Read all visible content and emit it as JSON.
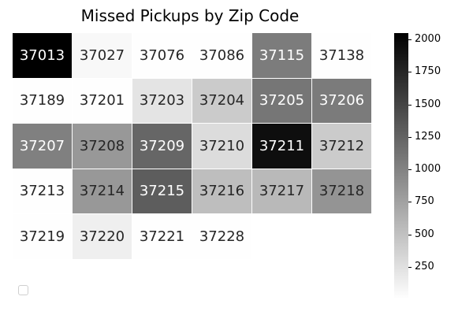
{
  "chart_data": {
    "type": "heatmap",
    "title": "Missed Pickups by Zip Code",
    "columns": 6,
    "cells": [
      {
        "label": "37013",
        "value": 2050
      },
      {
        "label": "37027",
        "value": 60
      },
      {
        "label": "37076",
        "value": 10
      },
      {
        "label": "37086",
        "value": 10
      },
      {
        "label": "37115",
        "value": 1050
      },
      {
        "label": "37138",
        "value": 10
      },
      {
        "label": "37189",
        "value": 10
      },
      {
        "label": "37201",
        "value": 5
      },
      {
        "label": "37203",
        "value": 220
      },
      {
        "label": "37204",
        "value": 420
      },
      {
        "label": "37205",
        "value": 1100
      },
      {
        "label": "37206",
        "value": 1060
      },
      {
        "label": "37207",
        "value": 1020
      },
      {
        "label": "37208",
        "value": 830
      },
      {
        "label": "37209",
        "value": 1230
      },
      {
        "label": "37210",
        "value": 280
      },
      {
        "label": "37211",
        "value": 1940
      },
      {
        "label": "37212",
        "value": 420
      },
      {
        "label": "37213",
        "value": 10
      },
      {
        "label": "37214",
        "value": 830
      },
      {
        "label": "37215",
        "value": 1300
      },
      {
        "label": "37216",
        "value": 520
      },
      {
        "label": "37217",
        "value": 560
      },
      {
        "label": "37218",
        "value": 860
      },
      {
        "label": "37219",
        "value": 10
      },
      {
        "label": "37220",
        "value": 130
      },
      {
        "label": "37221",
        "value": 10
      },
      {
        "label": "37228",
        "value": 10
      }
    ],
    "colorbar": {
      "min": 0,
      "max": 2050,
      "ticks": [
        250,
        500,
        750,
        1000,
        1250,
        1500,
        1750,
        2000
      ],
      "colormap": "Greys",
      "color_low": "#ffffff",
      "color_high": "#000000"
    }
  }
}
